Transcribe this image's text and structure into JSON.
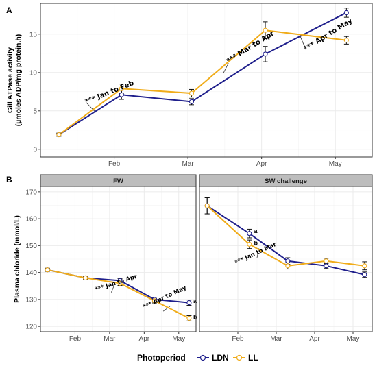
{
  "colors": {
    "LDN": "#1f1f8c",
    "LL": "#f0ac1a",
    "grid": "#ebebeb",
    "panel_border": "#333333",
    "strip_fill": "#bdbdbd"
  },
  "legend": {
    "title": "Photoperiod",
    "entries": [
      "LDN",
      "LL"
    ],
    "placement": "bottom"
  },
  "chart_data": [
    {
      "panel": "A",
      "type": "line",
      "ylabel_line1": "Gill ATPase activity",
      "ylabel_line2": "(µmoles ADP/mg protein.h)",
      "xlim": [
        0,
        4.5
      ],
      "ylim": [
        -1,
        19
      ],
      "x_ticks": [
        {
          "x": 1,
          "label": "Feb"
        },
        {
          "x": 2,
          "label": "Mar"
        },
        {
          "x": 3,
          "label": "Apr"
        },
        {
          "x": 4,
          "label": "May"
        }
      ],
      "y_ticks": [
        0,
        5,
        10,
        15
      ],
      "series": [
        {
          "name": "LDN",
          "x": [
            0.25,
            1.1,
            2.05,
            3.05,
            4.15
          ],
          "y": [
            1.9,
            7.1,
            6.2,
            12.4,
            17.8
          ],
          "err": [
            0.2,
            0.6,
            0.4,
            1.0,
            0.6
          ]
        },
        {
          "name": "LL",
          "x": [
            0.25,
            1.1,
            2.05,
            3.05,
            4.15
          ],
          "y": [
            1.9,
            7.9,
            7.3,
            15.5,
            14.2
          ],
          "err": [
            0.2,
            0.6,
            0.5,
            1.1,
            0.5
          ]
        }
      ],
      "annotations": [
        {
          "text": "*** Jan to Feb",
          "x": 0.62,
          "y": 5.9,
          "rot": -22,
          "size": "big",
          "line": [
            [
              0.62,
              6.1
            ],
            [
              0.75,
              4.8
            ]
          ]
        },
        {
          "text": "*** Mar to Apr",
          "x": 2.55,
          "y": 11.2,
          "rot": -32,
          "size": "big",
          "line": [
            [
              2.55,
              11.2
            ],
            [
              2.48,
              9.9
            ]
          ]
        },
        {
          "text": "*** Apr to May",
          "x": 3.6,
          "y": 12.8,
          "rot": -32,
          "size": "big",
          "line": [
            [
              3.6,
              13.0
            ],
            [
              3.52,
              14.8
            ]
          ]
        }
      ],
      "letters": []
    },
    {
      "panel": "B",
      "facet": "FW",
      "type": "line",
      "ylabel": "Plasma chloride (mmol/L)",
      "xlim": [
        0,
        4.5
      ],
      "ylim": [
        118,
        172
      ],
      "x_ticks": [
        {
          "x": 1,
          "label": "Feb"
        },
        {
          "x": 2,
          "label": "Mar"
        },
        {
          "x": 3,
          "label": "Apr"
        },
        {
          "x": 4,
          "label": "May"
        }
      ],
      "y_ticks": [
        120,
        130,
        140,
        150,
        160,
        170
      ],
      "series": [
        {
          "name": "LDN",
          "x": [
            0.2,
            1.3,
            2.3,
            3.3,
            4.3
          ],
          "y": [
            141,
            138,
            137,
            130,
            128.8
          ],
          "err": [
            0.6,
            0.6,
            0.8,
            0.8,
            1.0
          ]
        },
        {
          "name": "LL",
          "x": [
            0.2,
            1.3,
            2.3,
            3.3,
            4.3
          ],
          "y": [
            141,
            138,
            136,
            129.5,
            123
          ],
          "err": [
            0.6,
            0.6,
            0.8,
            0.8,
            1.0
          ]
        }
      ],
      "annotations": [
        {
          "text": "*** Jan to Apr",
          "x": 1.6,
          "y": 133,
          "rot": -18,
          "size": "small",
          "line": [
            [
              2.05,
              132.6
            ],
            [
              2.15,
              135.8
            ]
          ]
        },
        {
          "text": "*** Apr to May",
          "x": 3.0,
          "y": 126.5,
          "rot": -25,
          "size": "small",
          "line": [
            [
              3.55,
              125.6
            ],
            [
              3.75,
              127.5
            ]
          ]
        }
      ],
      "letters": [
        {
          "text": "a",
          "x": 4.42,
          "y": 129.5
        },
        {
          "text": "b",
          "x": 4.42,
          "y": 123.5
        }
      ]
    },
    {
      "panel": "B",
      "facet": "SW challenge",
      "type": "line",
      "xlim": [
        0,
        4.5
      ],
      "ylim": [
        118,
        172
      ],
      "x_ticks": [
        {
          "x": 1,
          "label": "Feb"
        },
        {
          "x": 2,
          "label": "Mar"
        },
        {
          "x": 3,
          "label": "Apr"
        },
        {
          "x": 4,
          "label": "May"
        }
      ],
      "y_ticks": [
        120,
        130,
        140,
        150,
        160,
        170
      ],
      "series": [
        {
          "name": "LDN",
          "x": [
            0.2,
            1.3,
            2.3,
            3.3,
            4.3
          ],
          "y": [
            164.8,
            154.5,
            144.3,
            142.5,
            139.2
          ],
          "err": [
            3.0,
            1.6,
            1.2,
            1.0,
            1.0
          ]
        },
        {
          "name": "LL",
          "x": [
            0.2,
            1.3,
            2.3,
            3.3,
            4.3
          ],
          "y": [
            164.8,
            150.5,
            142.5,
            144.3,
            142.5
          ],
          "err": [
            3.0,
            1.6,
            1.2,
            1.0,
            1.5
          ]
        }
      ],
      "annotations": [
        {
          "text": "*** Jan to Mar",
          "x": 0.95,
          "y": 143,
          "rot": -25,
          "size": "small",
          "line": [
            [
              1.5,
              145.5
            ],
            [
              1.55,
              149.0
            ]
          ]
        }
      ],
      "letters": [
        {
          "text": "a",
          "x": 1.42,
          "y": 155.5
        },
        {
          "text": "b",
          "x": 1.42,
          "y": 151.0
        }
      ]
    }
  ],
  "panel_letters": [
    "A",
    "B"
  ]
}
